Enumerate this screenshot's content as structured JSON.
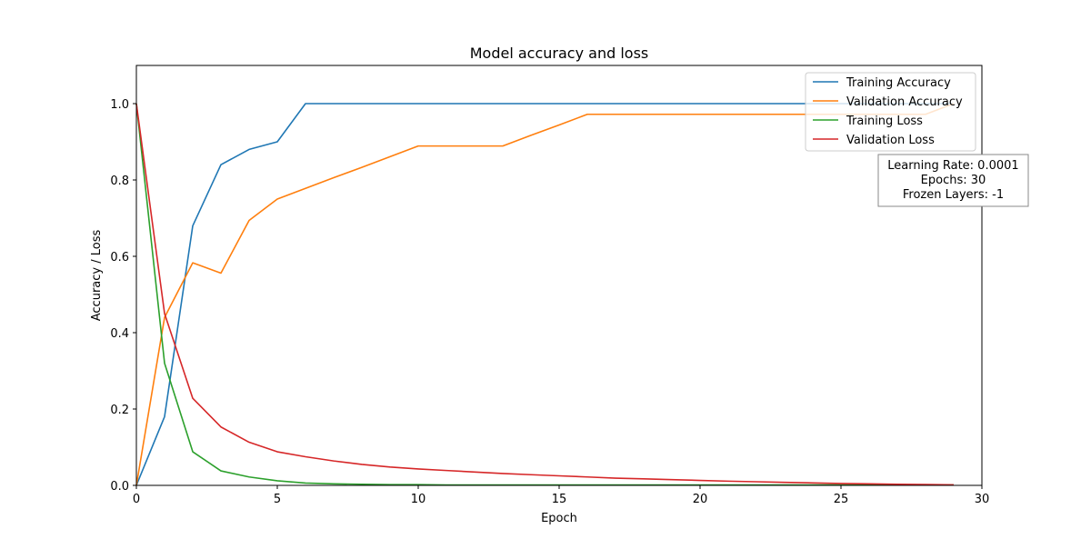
{
  "chart_data": {
    "type": "line",
    "title": "Model accuracy and loss",
    "xlabel": "Epoch",
    "ylabel": "Accuracy / Loss",
    "xlim": [
      0,
      30
    ],
    "ylim": [
      0,
      1.1
    ],
    "xticks": [
      0,
      5,
      10,
      15,
      20,
      25,
      30
    ],
    "yticks": [
      0.0,
      0.2,
      0.4,
      0.6,
      0.8,
      1.0
    ],
    "xtick_labels": [
      "0",
      "5",
      "10",
      "15",
      "20",
      "25",
      "30"
    ],
    "ytick_labels": [
      "0.0",
      "0.2",
      "0.4",
      "0.6",
      "0.8",
      "1.0"
    ],
    "grid": false,
    "legend_position": "top-right",
    "x": [
      0,
      1,
      2,
      3,
      4,
      5,
      6,
      7,
      8,
      9,
      10,
      11,
      12,
      13,
      14,
      15,
      16,
      17,
      18,
      19,
      20,
      21,
      22,
      23,
      24,
      25,
      26,
      27,
      28,
      29
    ],
    "series": [
      {
        "name": "Training Accuracy",
        "color": "#1f77b4",
        "values": [
          0.0,
          0.18,
          0.68,
          0.84,
          0.88,
          0.9,
          1.0,
          1.0,
          1.0,
          1.0,
          1.0,
          1.0,
          1.0,
          1.0,
          1.0,
          1.0,
          1.0,
          1.0,
          1.0,
          1.0,
          1.0,
          1.0,
          1.0,
          1.0,
          1.0,
          1.0,
          1.0,
          1.0,
          1.0,
          1.0
        ]
      },
      {
        "name": "Validation Accuracy",
        "color": "#ff7f0e",
        "values": [
          0.0,
          0.44,
          0.583,
          0.556,
          0.694,
          0.75,
          0.778,
          0.806,
          0.833,
          0.861,
          0.889,
          0.889,
          0.889,
          0.889,
          0.917,
          0.944,
          0.972,
          0.972,
          0.972,
          0.972,
          0.972,
          0.972,
          0.972,
          0.972,
          0.972,
          0.972,
          0.972,
          0.972,
          0.972,
          1.0
        ]
      },
      {
        "name": "Training Loss",
        "color": "#2ca02c",
        "values": [
          1.0,
          0.32,
          0.088,
          0.038,
          0.022,
          0.012,
          0.006,
          0.004,
          0.003,
          0.002,
          0.002,
          0.001,
          0.001,
          0.001,
          0.001,
          0.001,
          0.001,
          0.001,
          0.001,
          0.001,
          0.001,
          0.001,
          0.001,
          0.001,
          0.001,
          0.001,
          0.001,
          0.001,
          0.001,
          0.001
        ]
      },
      {
        "name": "Validation Loss",
        "color": "#d62728",
        "values": [
          1.0,
          0.45,
          0.228,
          0.153,
          0.113,
          0.088,
          0.075,
          0.064,
          0.055,
          0.048,
          0.043,
          0.039,
          0.035,
          0.031,
          0.028,
          0.025,
          0.022,
          0.019,
          0.017,
          0.015,
          0.013,
          0.011,
          0.0095,
          0.008,
          0.0065,
          0.005,
          0.004,
          0.003,
          0.0023,
          0.0015
        ]
      }
    ],
    "annotation": {
      "lines": [
        "Learning Rate: 0.0001",
        "Epochs: 30",
        "Frozen Layers: -1"
      ]
    }
  }
}
